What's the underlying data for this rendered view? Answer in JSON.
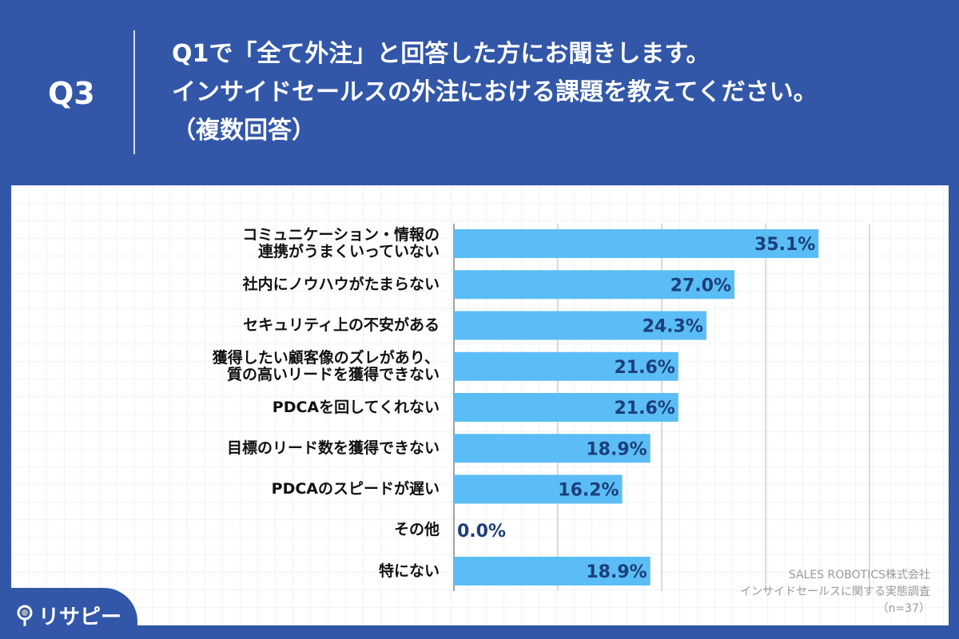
{
  "header": {
    "q_number": "Q3",
    "question_lines": [
      "Q1で「全て外注」と回答した方にお聞きします。",
      "インサイドセールスの外注における課題を教えてください。",
      "（複数回答）"
    ]
  },
  "chart_data": {
    "type": "bar",
    "orientation": "horizontal",
    "categories": [
      "コミュニケーション・情報の\n連携がうまくいっていない",
      "社内にノウハウがたまらない",
      "セキュリティ上の不安がある",
      "獲得したい顧客像のズレがあり、\n質の高いリードを獲得できない",
      "PDCAを回してくれない",
      "目標のリード数を獲得できない",
      "PDCAのスピードが遅い",
      "その他",
      "特にない"
    ],
    "values": [
      35.1,
      27.0,
      24.3,
      21.6,
      21.6,
      18.9,
      16.2,
      0.0,
      18.9
    ],
    "value_labels": [
      "35.1%",
      "27.0%",
      "24.3%",
      "21.6%",
      "21.6%",
      "18.9%",
      "16.2%",
      "0.0%",
      "18.9%"
    ],
    "xlim": [
      0,
      40
    ],
    "grid": true,
    "bar_color": "#5bbdf5",
    "label_color": "#1c3f7a"
  },
  "source": {
    "company": "SALES ROBOTICS株式会社",
    "survey": "インサイドセールスに関する実態調査",
    "n": "（n=37）"
  },
  "logo": {
    "text": "リサピー"
  }
}
